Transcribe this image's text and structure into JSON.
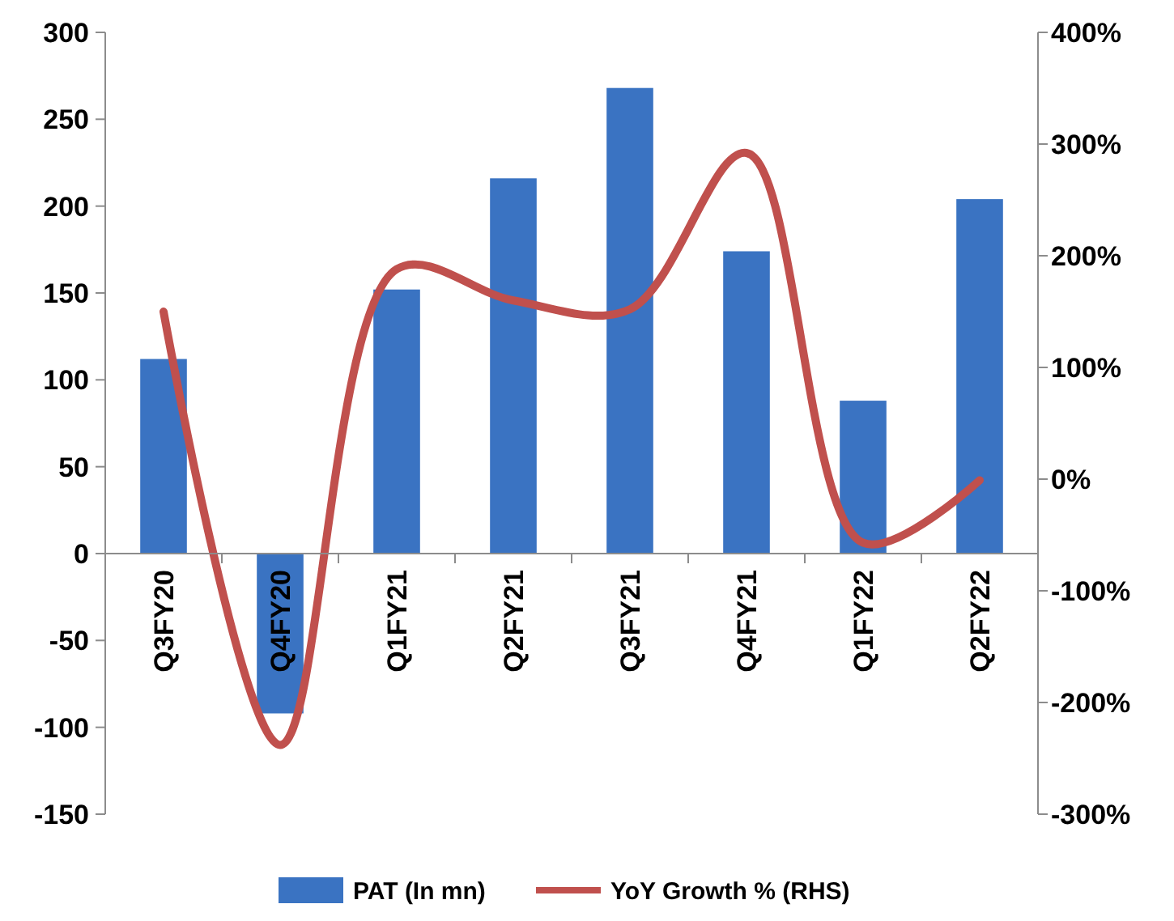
{
  "chart_data": {
    "type": "bar",
    "categories": [
      "Q3FY20",
      "Q4FY20",
      "Q1FY21",
      "Q2FY21",
      "Q3FY21",
      "Q4FY21",
      "Q1FY22",
      "Q2FY22"
    ],
    "series": [
      {
        "name": "PAT (In mn)",
        "color": "#3a73c2",
        "values": [
          112,
          -92,
          152,
          216,
          268,
          174,
          88,
          204
        ]
      },
      {
        "name": "YoY Growth % (RHS)",
        "type": "line",
        "axis": "y2",
        "color": "#c0504d",
        "values": [
          150,
          -238,
          188,
          160,
          152,
          292,
          -57,
          -1
        ]
      }
    ],
    "ylim": [
      -150,
      300
    ],
    "yticks": [
      -150,
      -100,
      -50,
      0,
      50,
      100,
      150,
      200,
      250,
      300
    ],
    "y2lim": [
      -300,
      400
    ],
    "y2ticks": [
      {
        "value": -300,
        "label": "-300%"
      },
      {
        "value": -200,
        "label": "-200%"
      },
      {
        "value": -100,
        "label": "-100%"
      },
      {
        "value": 0,
        "label": "0%"
      },
      {
        "value": 100,
        "label": "100%"
      },
      {
        "value": 200,
        "label": "200%"
      },
      {
        "value": 300,
        "label": "300%"
      },
      {
        "value": 400,
        "label": "400%"
      }
    ],
    "legend": "bottom"
  }
}
